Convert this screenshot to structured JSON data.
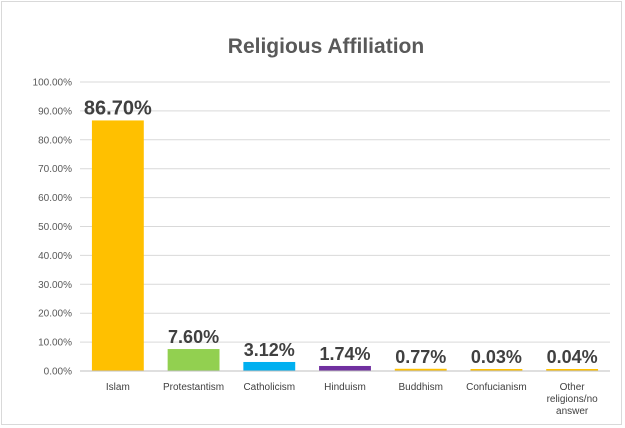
{
  "chart_data": {
    "type": "bar",
    "title": "Religious Affiliation",
    "xlabel": "",
    "ylabel": "",
    "ylim": [
      0,
      100
    ],
    "yticks": [
      "0.00%",
      "10.00%",
      "20.00%",
      "30.00%",
      "40.00%",
      "50.00%",
      "60.00%",
      "70.00%",
      "80.00%",
      "90.00%",
      "100.00%"
    ],
    "grid": true,
    "legend": "none",
    "categories": [
      [
        "Islam"
      ],
      [
        "Protestantism"
      ],
      [
        "Catholicism"
      ],
      [
        "Hinduism"
      ],
      [
        "Buddhism"
      ],
      [
        "Confucianism"
      ],
      [
        "Other",
        "religions/no",
        "answer"
      ]
    ],
    "values": [
      86.7,
      7.6,
      3.12,
      1.74,
      0.77,
      0.03,
      0.04
    ],
    "data_labels": [
      "86.70%",
      "7.60%",
      "3.12%",
      "1.74%",
      "0.77%",
      "0.03%",
      "0.04%"
    ],
    "colors": [
      "#FFC000",
      "#92D050",
      "#00B0F0",
      "#7030A0",
      "#FFC000",
      "#FFC000",
      "#FFC000"
    ]
  }
}
